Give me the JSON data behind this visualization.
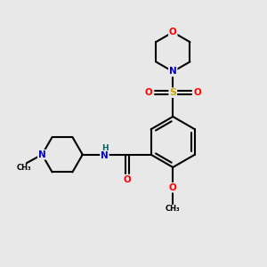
{
  "background_color": "#e8e8e8",
  "bond_color": "#000000",
  "colors": {
    "C": "#000000",
    "N": "#0000cc",
    "O": "#ff0000",
    "S": "#ccaa00",
    "H": "#006666"
  },
  "figsize": [
    3.0,
    3.0
  ],
  "dpi": 100
}
